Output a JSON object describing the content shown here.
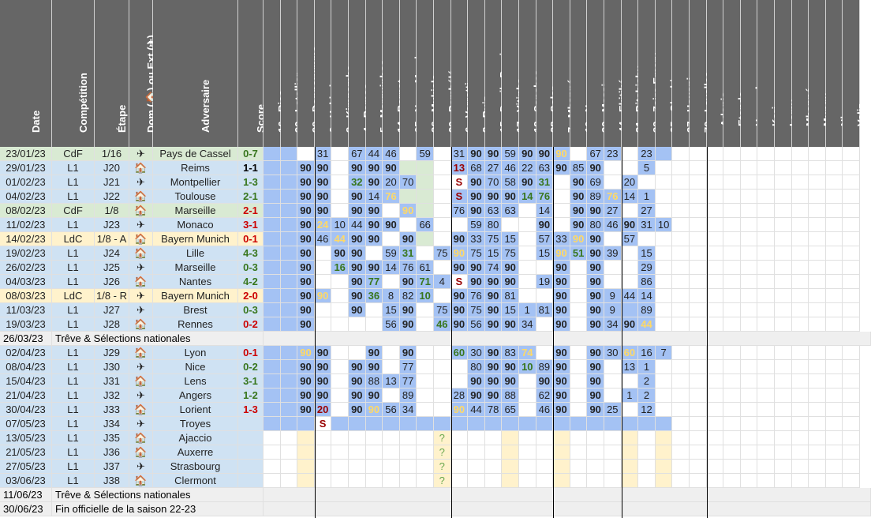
{
  "colors": {
    "header": "#666666",
    "header_text": "#ffffff",
    "green_row": "#d9ead3",
    "yellow_row": "#fff2cc",
    "blue_row": "#cfe2f3",
    "grey_row": "#efefef",
    "played": "#a4c2f4",
    "bench": "#d9ead3",
    "future": "#fff2cc",
    "win": "#38761d",
    "draw": "#000000",
    "loss": "#cc0000",
    "highlight": "#ffd966",
    "red_text": "#990000"
  },
  "headers": {
    "date": "Date",
    "competition": "Compétition",
    "stage": "Étape",
    "venue": "Dom (🏠) ou Ext (✈)",
    "opponent": "Adversaire",
    "score": "Score"
  },
  "players": [
    "16 - Rico",
    "90 - Letellier",
    "99 - Donnarumma",
    "2 - Hakimi",
    "3 - Kimpembe",
    "4 - Ramos",
    "5 - Marquinhos",
    "14 - Bernat",
    "25 - Nuno Mendes",
    "26 - Mukiele",
    "29 - Pembélé",
    "6 - Verratti",
    "8 - Ruiz",
    "15 - Danilo Pereira",
    "17 - Vitinha",
    "18 - Sanches",
    "28 - Soler",
    "7 - Mbappé",
    "10 - Neymar",
    "30 - Messi",
    "44 - Ekitiké",
    "31 - Bitshiabu",
    "33 - Zaire-Emery",
    "35 - Gharbi",
    "37 - Housni",
    "70 - Lavallee",
    "- Adonis",
    "- Etonde",
    "- Hannach",
    "- Kari",
    "- Lamy",
    "- Mbappé",
    "- Mungu",
    "- Nhaga",
    "- Veliz"
  ],
  "icons": {
    "home": "home-icon",
    "away": "plane-icon"
  },
  "rows": [
    {
      "date": "23/01/23",
      "comp": "CdF",
      "stage": "1/16",
      "venue": "away",
      "opp": "Pays de Cassel",
      "score": "0-7",
      "res": "W",
      "style": "green",
      "cells": [
        "P",
        "P",
        "",
        "P:31",
        "",
        "P:67",
        "P:44",
        "P:46",
        "",
        "P:59",
        "",
        "P:31",
        "P:90",
        "P:90",
        "P:59",
        "P:90",
        "P:90",
        "P:90y",
        "",
        "P:67",
        "P:23",
        "",
        "P:23",
        "P"
      ]
    },
    {
      "date": "29/01/23",
      "comp": "L1",
      "stage": "J20",
      "venue": "home",
      "opp": "Reims",
      "score": "1-1",
      "res": "D",
      "style": "blue",
      "cells": [
        "P",
        "P",
        "P:90",
        "P:90",
        "",
        "P:90",
        "P:90",
        "P:90",
        "G",
        "G",
        "",
        "P:13r",
        "P:68",
        "P:27",
        "P:46",
        "P:22",
        "P:63",
        "P:90",
        "P:85",
        "P:90",
        "",
        "",
        "P:5",
        "",
        ""
      ]
    },
    {
      "date": "01/02/23",
      "comp": "L1",
      "stage": "J21",
      "venue": "away",
      "opp": "Montpellier",
      "score": "1-3",
      "res": "W",
      "style": "blue",
      "cells": [
        "P",
        "P",
        "P:90",
        "P:90",
        "",
        "P:32g",
        "P:90",
        "P:20",
        "P:70",
        "G",
        "",
        "S:S",
        "P:90",
        "P:70",
        "P:58",
        "P:90",
        "P:31g",
        "",
        "P:90",
        "P:69",
        "",
        "P:20",
        "",
        ""
      ]
    },
    {
      "date": "04/02/23",
      "comp": "L1",
      "stage": "J22",
      "venue": "home",
      "opp": "Toulouse",
      "score": "2-1",
      "res": "W",
      "style": "blue",
      "cells": [
        "P",
        "P",
        "P:90",
        "P:90",
        "",
        "P:90",
        "P:14",
        "P:76y",
        "G",
        "G",
        "",
        "P:S",
        "P:90",
        "P:90",
        "P:90",
        "P:14g",
        "P:76g",
        "",
        "P:90",
        "P:89",
        "P:76y",
        "P:14",
        "P:1",
        ""
      ]
    },
    {
      "date": "08/02/23",
      "comp": "CdF",
      "stage": "1/8",
      "venue": "home",
      "opp": "Marseille",
      "score": "2-1",
      "res": "L",
      "style": "green",
      "cells": [
        "P",
        "P",
        "P:90",
        "P:90",
        "",
        "P:90",
        "P:90",
        "",
        "P:90y",
        "G",
        "",
        "P:76",
        "P:90",
        "P:63",
        "P:63",
        "",
        "P:14",
        "",
        "P:90",
        "P:90",
        "P:27",
        "",
        "P:27",
        ""
      ]
    },
    {
      "date": "11/02/23",
      "comp": "L1",
      "stage": "J23",
      "venue": "away",
      "opp": "Monaco",
      "score": "3-1",
      "res": "L",
      "style": "blue",
      "cells": [
        "P",
        "P",
        "P:90",
        "P:24y",
        "P:10",
        "P:44",
        "P:90",
        "P:90",
        "",
        "P:66",
        "",
        "",
        "P:59",
        "P:80",
        "",
        "",
        "P:90",
        "",
        "P:90",
        "P:80",
        "P:46",
        "P:90",
        "P:31",
        "P:10"
      ]
    },
    {
      "date": "14/02/23",
      "comp": "LdC",
      "stage": "1/8 - A",
      "venue": "home",
      "opp": "Bayern Munich",
      "score": "0-1",
      "res": "L",
      "style": "yellow",
      "cells": [
        "P",
        "P",
        "P:90",
        "P:46",
        "P:44y",
        "P:90",
        "P:90",
        "",
        "P:90",
        "G",
        "",
        "P:90",
        "P:33",
        "P:75",
        "P:15",
        "",
        "P:57",
        "P:33",
        "P:90y",
        "P:90",
        "",
        "P:57",
        "",
        ""
      ]
    },
    {
      "date": "19/02/23",
      "comp": "L1",
      "stage": "J24",
      "venue": "home",
      "opp": "Lille",
      "score": "4-3",
      "res": "W",
      "style": "blue",
      "cells": [
        "P",
        "P",
        "P:90",
        "",
        "P:90",
        "P:90",
        "",
        "P:59",
        "P:31g",
        "",
        "P:75",
        "P:90y",
        "P:75",
        "P:15",
        "P:75",
        "",
        "P:15",
        "P:90y",
        "P:51g",
        "P:90",
        "P:39",
        "",
        "P:15",
        ""
      ]
    },
    {
      "date": "26/02/23",
      "comp": "L1",
      "stage": "J25",
      "venue": "away",
      "opp": "Marseille",
      "score": "0-3",
      "res": "W",
      "style": "blue",
      "cells": [
        "P",
        "P",
        "P:90",
        "",
        "P:16g",
        "P:90",
        "P:90",
        "P:14",
        "P:76",
        "P:61",
        "",
        "P:90",
        "P:90",
        "P:74",
        "P:90",
        "",
        "",
        "P:90",
        "",
        "P:90",
        "",
        "",
        "P:29",
        ""
      ]
    },
    {
      "date": "04/03/23",
      "comp": "L1",
      "stage": "J26",
      "venue": "home",
      "opp": "Nantes",
      "score": "4-2",
      "res": "W",
      "style": "blue",
      "cells": [
        "P",
        "P",
        "P:90",
        "",
        "",
        "P:90",
        "P:77g",
        "",
        "P:90",
        "P:71g",
        "P:4",
        "S:S",
        "P:90",
        "P:90",
        "P:90",
        "",
        "P:19",
        "P:90",
        "",
        "P:90",
        "",
        "",
        "P:86",
        ""
      ]
    },
    {
      "date": "08/03/23",
      "comp": "LdC",
      "stage": "1/8 - R",
      "venue": "away",
      "opp": "Bayern Munich",
      "score": "2-0",
      "res": "L",
      "style": "yellow",
      "cells": [
        "P",
        "P",
        "P:90",
        "P:90y",
        "",
        "P:90",
        "P:36g",
        "P:8",
        "P:82",
        "P:10g",
        "",
        "P:90",
        "P:76",
        "P:90",
        "P:81",
        "",
        "",
        "P:90",
        "",
        "P:90",
        "P:9",
        "P:44",
        "P:14",
        ""
      ]
    },
    {
      "date": "11/03/23",
      "comp": "L1",
      "stage": "J27",
      "venue": "away",
      "opp": "Brest",
      "score": "0-3",
      "res": "W",
      "style": "blue",
      "cells": [
        "P",
        "P",
        "P:90",
        "",
        "",
        "P:90",
        "",
        "P:15",
        "P:90",
        "",
        "P:75",
        "P:90",
        "P:75",
        "P:90",
        "P:15",
        "P:1",
        "P:81",
        "P:90",
        "",
        "P:90",
        "P:9",
        "P:r",
        "P:89",
        ""
      ]
    },
    {
      "date": "19/03/23",
      "comp": "L1",
      "stage": "J28",
      "venue": "home",
      "opp": "Rennes",
      "score": "0-2",
      "res": "L",
      "style": "blue",
      "cells": [
        "P",
        "P",
        "P:90",
        "",
        "",
        "",
        "",
        "P:56",
        "P:90",
        "",
        "P:46g",
        "P:90",
        "P:56",
        "P:90",
        "P:90",
        "P:34",
        "",
        "P:90",
        "",
        "P:90",
        "P:34",
        "P:90",
        "P:44y",
        ""
      ]
    },
    {
      "date": "26/03/23",
      "note": "Trêve & Sélections nationales",
      "style": "grey"
    },
    {
      "date": "02/04/23",
      "comp": "L1",
      "stage": "J29",
      "venue": "home",
      "opp": "Lyon",
      "score": "0-1",
      "res": "L",
      "style": "blue",
      "cells": [
        "P",
        "P",
        "P:90y",
        "P:90",
        "",
        "",
        "P:90",
        "",
        "P:90",
        "",
        "",
        "P:60g",
        "P:30",
        "P:90",
        "P:83",
        "P:74y",
        "",
        "P:90",
        "",
        "P:90",
        "P:30",
        "P:60y",
        "P:16",
        "P:7"
      ]
    },
    {
      "date": "08/04/23",
      "comp": "L1",
      "stage": "J30",
      "venue": "away",
      "opp": "Nice",
      "score": "0-2",
      "res": "W",
      "style": "blue",
      "cells": [
        "P",
        "P",
        "P:90",
        "P:90",
        "",
        "P:90",
        "P:90",
        "",
        "P:77",
        "",
        "",
        "",
        "P:80",
        "P:90",
        "P:90",
        "P:10g",
        "P:89",
        "P:90",
        "",
        "P:90",
        "",
        "P:13",
        "P:1",
        ""
      ]
    },
    {
      "date": "15/04/23",
      "comp": "L1",
      "stage": "J31",
      "venue": "home",
      "opp": "Lens",
      "score": "3-1",
      "res": "W",
      "style": "blue",
      "cells": [
        "P",
        "P",
        "P:90",
        "P:90",
        "",
        "P:90",
        "P:88",
        "P:13",
        "P:77",
        "",
        "",
        "",
        "P:90",
        "P:90",
        "P:90",
        "",
        "P:90",
        "P:90",
        "",
        "P:90",
        "",
        "",
        "P:2",
        ""
      ]
    },
    {
      "date": "21/04/23",
      "comp": "L1",
      "stage": "J32",
      "venue": "away",
      "opp": "Angers",
      "score": "1-2",
      "res": "W",
      "style": "blue",
      "cells": [
        "P",
        "P",
        "P:90",
        "P:90",
        "",
        "P:90",
        "P:90",
        "",
        "P:89",
        "",
        "",
        "P:28",
        "P:90",
        "P:90",
        "P:88",
        "",
        "P:62",
        "P:90",
        "",
        "P:90",
        "",
        "P:1",
        "P:2",
        ""
      ]
    },
    {
      "date": "30/04/23",
      "comp": "L1",
      "stage": "J33",
      "venue": "home",
      "opp": "Lorient",
      "score": "1-3",
      "res": "L",
      "style": "blue",
      "cells": [
        "P",
        "P",
        "P:90",
        "P:20r",
        "",
        "P:90",
        "P:90y",
        "P:56",
        "P:34",
        "",
        "",
        "P:90y",
        "P:44",
        "P:78",
        "P:65",
        "",
        "P:46",
        "P:90",
        "",
        "P:90",
        "P:25",
        "",
        "P:12",
        ""
      ]
    },
    {
      "date": "07/05/23",
      "comp": "L1",
      "stage": "J34",
      "venue": "away",
      "opp": "Troyes",
      "score": "",
      "res": "",
      "style": "blue",
      "cells": [
        "P",
        "P",
        "P",
        "S:S",
        "P",
        "P",
        "P",
        "P",
        "P",
        "P",
        "P",
        "P",
        "P",
        "P",
        "P",
        "P",
        "P",
        "P",
        "P",
        "P",
        "P",
        "P",
        "P",
        "P"
      ]
    },
    {
      "date": "13/05/23",
      "comp": "L1",
      "stage": "J35",
      "venue": "home",
      "opp": "Ajaccio",
      "score": "",
      "res": "",
      "style": "blue",
      "future": true
    },
    {
      "date": "21/05/23",
      "comp": "L1",
      "stage": "J36",
      "venue": "home",
      "opp": "Auxerre",
      "score": "",
      "res": "",
      "style": "blue",
      "future": true
    },
    {
      "date": "27/05/23",
      "comp": "L1",
      "stage": "J37",
      "venue": "away",
      "opp": "Strasbourg",
      "score": "",
      "res": "",
      "style": "blue",
      "future": true
    },
    {
      "date": "03/06/23",
      "comp": "L1",
      "stage": "J38",
      "venue": "home",
      "opp": "Clermont",
      "score": "",
      "res": "",
      "style": "blue",
      "future": true
    },
    {
      "date": "11/06/23",
      "note": "Trêve & Sélections nationales",
      "style": "grey"
    },
    {
      "date": "30/06/23",
      "note": "Fin officielle de la saison 22-23",
      "style": "grey"
    }
  ],
  "question_mark": "?"
}
